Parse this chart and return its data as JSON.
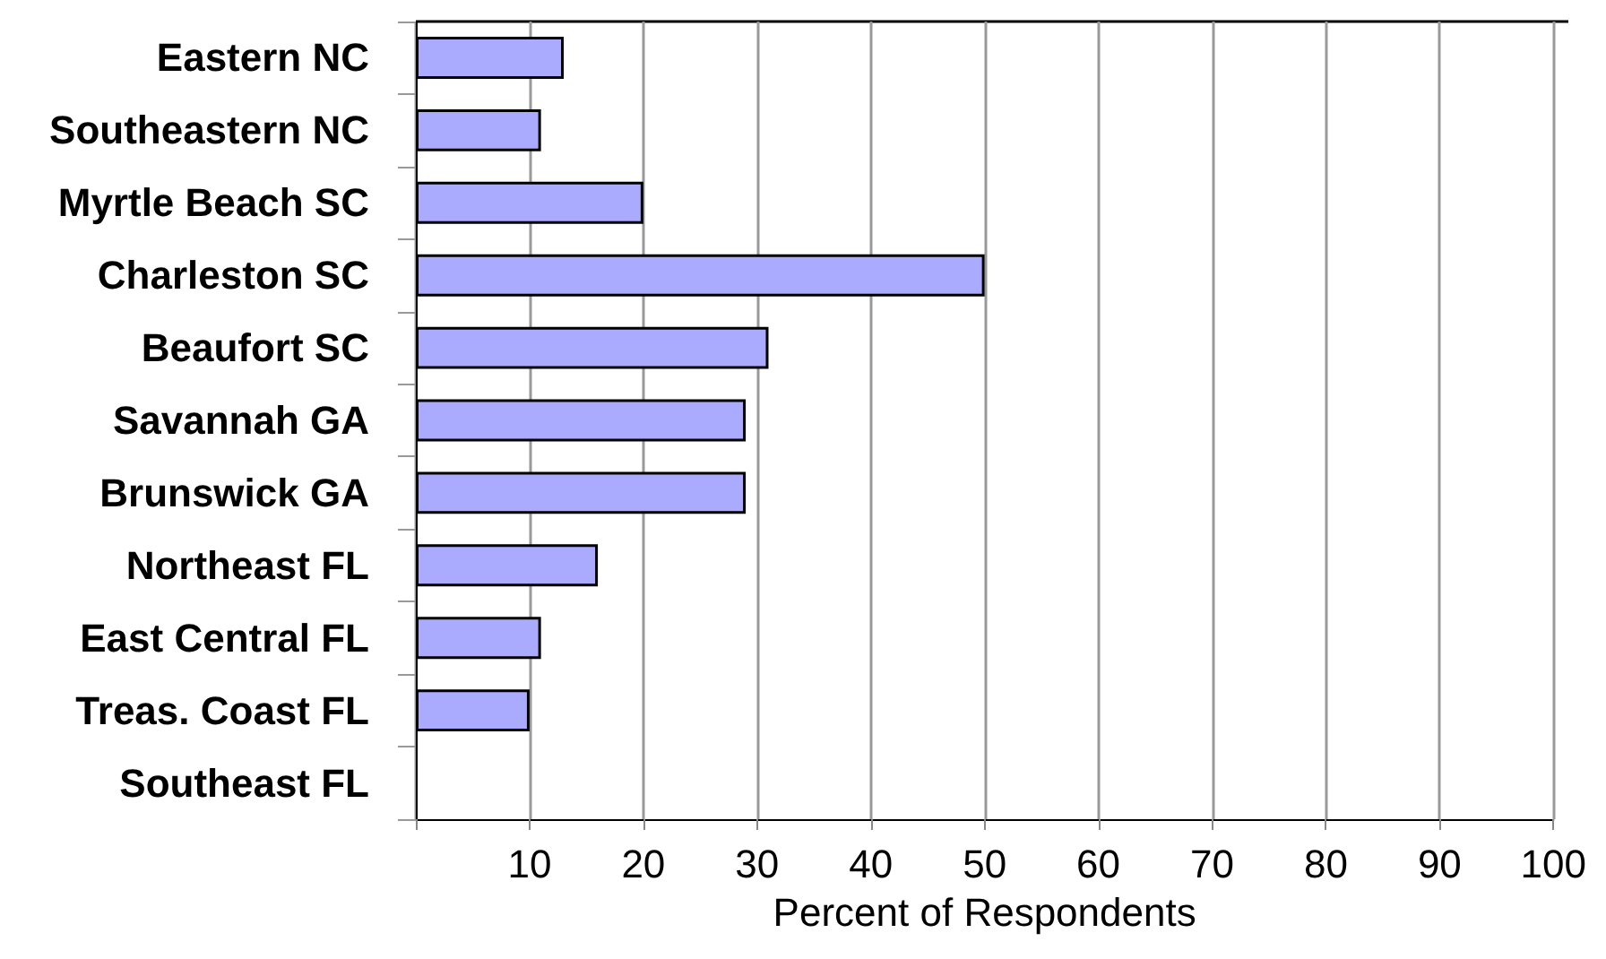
{
  "chart_data": {
    "type": "bar",
    "orientation": "horizontal",
    "xlabel": "Percent of Respondents",
    "categories": [
      "Eastern NC",
      "Southeastern NC",
      "Myrtle Beach SC",
      "Charleston SC",
      "Beaufort SC",
      "Savannah GA",
      "Brunswick GA",
      "Northeast FL",
      "East Central FL",
      "Treas. Coast FL",
      "Southeast FL"
    ],
    "values": [
      13,
      11,
      20,
      50,
      31,
      29,
      29,
      16,
      11,
      10,
      0
    ],
    "color": "#aaaaff",
    "xlim": [
      0,
      100
    ],
    "xticks": [
      {
        "value": 0,
        "label": null
      },
      10,
      20,
      30,
      40,
      50,
      60,
      70,
      80,
      90,
      100
    ],
    "grid": "x"
  }
}
